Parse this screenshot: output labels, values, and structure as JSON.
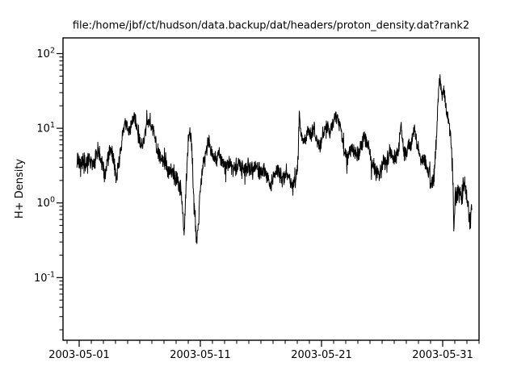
{
  "window": {
    "background_color": "#ffffff",
    "foreground_color": "#000000"
  },
  "chart_data": {
    "type": "line",
    "title": "file:/home/jbf/ct/hudson/data.backup/dat/headers/proton_density.dat?rank2",
    "ylabel": "H+ Density",
    "xlabel": "",
    "grid": false,
    "legend": "none",
    "background": "#ffffff",
    "line_color": "#000000",
    "frame_color": "#000000",
    "x_axis": {
      "type": "time",
      "tick_labels": [
        "2003-05-01",
        "2003-05-11",
        "2003-05-21",
        "2003-05-31"
      ],
      "tick_days_since_2003_05_01": [
        0,
        10,
        20,
        30
      ],
      "minor_tick_interval_days": 1,
      "range_days_since_2003_05_01": [
        -1.33,
        33.0
      ]
    },
    "y_axis": {
      "scale": "log",
      "tick_labels_plain": [
        "10^2",
        "10^1",
        "10^0",
        "10^-1"
      ],
      "tick_exponents": [
        2,
        1,
        0,
        -1
      ],
      "tick_values": [
        100,
        10,
        1,
        0.1
      ],
      "minor_ticks": "log decades 2-9",
      "range": [
        0.015,
        160
      ]
    },
    "series": [
      {
        "name": "proton_density",
        "color": "#000000",
        "note": "dense noisy solar-wind proton density trace; keypoints are [days since 2003-05-01, density, noise half-width in log10 decades] estimated from pixels",
        "render": {
          "step_days": 0.02,
          "seed": 42
        },
        "keypoints": [
          [
            -0.2,
            4.0,
            0.16
          ],
          [
            0.0,
            3.2,
            0.14
          ],
          [
            0.3,
            3.8,
            0.13
          ],
          [
            0.6,
            2.9,
            0.13
          ],
          [
            0.9,
            4.1,
            0.13
          ],
          [
            1.2,
            3.1,
            0.12
          ],
          [
            1.55,
            5.2,
            0.11
          ],
          [
            1.85,
            3.6,
            0.12
          ],
          [
            2.15,
            2.4,
            0.12
          ],
          [
            2.5,
            5.0,
            0.11
          ],
          [
            2.75,
            4.6,
            0.11
          ],
          [
            3.05,
            2.1,
            0.12
          ],
          [
            3.35,
            4.0,
            0.12
          ],
          [
            3.6,
            8.0,
            0.11
          ],
          [
            3.8,
            13.0,
            0.09
          ],
          [
            3.95,
            10.0,
            0.1
          ],
          [
            4.15,
            8.5,
            0.1
          ],
          [
            4.35,
            12.5,
            0.09
          ],
          [
            4.55,
            14.0,
            0.09
          ],
          [
            4.75,
            10.0,
            0.1
          ],
          [
            4.95,
            7.5,
            0.1
          ],
          [
            5.15,
            5.5,
            0.1
          ],
          [
            5.35,
            7.0,
            0.1
          ],
          [
            5.55,
            11.0,
            0.09
          ],
          [
            5.75,
            13.5,
            0.09
          ],
          [
            5.95,
            11.0,
            0.09
          ],
          [
            6.2,
            8.0,
            0.1
          ],
          [
            6.45,
            5.0,
            0.11
          ],
          [
            6.7,
            4.0,
            0.11
          ],
          [
            7.0,
            3.5,
            0.12
          ],
          [
            7.3,
            3.0,
            0.12
          ],
          [
            7.6,
            2.8,
            0.12
          ],
          [
            7.9,
            2.3,
            0.12
          ],
          [
            8.2,
            1.8,
            0.13
          ],
          [
            8.45,
            1.2,
            0.14
          ],
          [
            8.65,
            0.36,
            0.1
          ],
          [
            8.8,
            1.5,
            0.16
          ],
          [
            9.0,
            6.5,
            0.12
          ],
          [
            9.15,
            9.0,
            0.1
          ],
          [
            9.3,
            5.0,
            0.13
          ],
          [
            9.45,
            1.2,
            0.15
          ],
          [
            9.6,
            0.45,
            0.12
          ],
          [
            9.72,
            0.32,
            0.1
          ],
          [
            9.85,
            0.6,
            0.15
          ],
          [
            10.0,
            1.6,
            0.14
          ],
          [
            10.3,
            3.5,
            0.12
          ],
          [
            10.7,
            6.8,
            0.1
          ],
          [
            10.95,
            4.8,
            0.11
          ],
          [
            11.2,
            3.6,
            0.11
          ],
          [
            11.5,
            4.4,
            0.11
          ],
          [
            11.8,
            3.4,
            0.11
          ],
          [
            12.1,
            3.0,
            0.11
          ],
          [
            12.45,
            3.4,
            0.11
          ],
          [
            12.8,
            2.7,
            0.11
          ],
          [
            13.15,
            3.3,
            0.11
          ],
          [
            13.5,
            2.8,
            0.11
          ],
          [
            13.85,
            3.1,
            0.11
          ],
          [
            14.2,
            2.6,
            0.11
          ],
          [
            14.55,
            3.0,
            0.11
          ],
          [
            14.9,
            2.6,
            0.11
          ],
          [
            15.25,
            2.9,
            0.1
          ],
          [
            15.55,
            2.1,
            0.1
          ],
          [
            15.8,
            1.6,
            0.1
          ],
          [
            16.05,
            2.4,
            0.1
          ],
          [
            16.4,
            2.7,
            0.1
          ],
          [
            16.75,
            2.1,
            0.1
          ],
          [
            17.1,
            2.5,
            0.1
          ],
          [
            17.45,
            2.0,
            0.1
          ],
          [
            17.65,
            1.6,
            0.1
          ],
          [
            17.9,
            2.2,
            0.1
          ],
          [
            18.05,
            3.5,
            0.1
          ],
          [
            18.17,
            16.0,
            0.1
          ],
          [
            18.3,
            8.5,
            0.09
          ],
          [
            18.6,
            7.0,
            0.09
          ],
          [
            18.9,
            9.5,
            0.09
          ],
          [
            19.15,
            7.5,
            0.09
          ],
          [
            19.35,
            10.5,
            0.09
          ],
          [
            19.6,
            7.0,
            0.09
          ],
          [
            19.9,
            6.0,
            0.1
          ],
          [
            20.15,
            8.0,
            0.09
          ],
          [
            20.45,
            10.5,
            0.09
          ],
          [
            20.7,
            8.5,
            0.09
          ],
          [
            20.95,
            12.0,
            0.09
          ],
          [
            21.3,
            14.5,
            0.09
          ],
          [
            21.55,
            10.0,
            0.09
          ],
          [
            21.8,
            5.5,
            0.1
          ],
          [
            22.1,
            4.0,
            0.11
          ],
          [
            22.5,
            5.0,
            0.11
          ],
          [
            22.9,
            4.2,
            0.11
          ],
          [
            23.2,
            5.2,
            0.11
          ],
          [
            23.5,
            8.0,
            0.1
          ],
          [
            23.75,
            6.5,
            0.1
          ],
          [
            24.1,
            4.0,
            0.11
          ],
          [
            24.45,
            2.8,
            0.11
          ],
          [
            24.7,
            2.2,
            0.11
          ],
          [
            25.0,
            3.0,
            0.11
          ],
          [
            25.35,
            3.8,
            0.11
          ],
          [
            25.7,
            4.8,
            0.11
          ],
          [
            26.0,
            3.8,
            0.11
          ],
          [
            26.3,
            4.4,
            0.11
          ],
          [
            26.55,
            11.0,
            0.09
          ],
          [
            26.8,
            4.5,
            0.11
          ],
          [
            27.1,
            5.5,
            0.11
          ],
          [
            27.4,
            6.5,
            0.1
          ],
          [
            27.65,
            9.5,
            0.09
          ],
          [
            27.9,
            6.0,
            0.1
          ],
          [
            28.2,
            4.0,
            0.11
          ],
          [
            28.55,
            3.2,
            0.11
          ],
          [
            28.85,
            2.6,
            0.12
          ],
          [
            29.1,
            1.7,
            0.12
          ],
          [
            29.3,
            2.2,
            0.13
          ],
          [
            29.45,
            6.0,
            0.12
          ],
          [
            29.6,
            20.0,
            0.1
          ],
          [
            29.77,
            48.0,
            0.08
          ],
          [
            29.95,
            26.0,
            0.1
          ],
          [
            30.1,
            34.0,
            0.09
          ],
          [
            30.3,
            17.0,
            0.1
          ],
          [
            30.5,
            11.0,
            0.1
          ],
          [
            30.68,
            8.0,
            0.1
          ],
          [
            30.82,
            2.5,
            0.14
          ],
          [
            30.93,
            0.45,
            0.1
          ],
          [
            31.05,
            1.3,
            0.15
          ],
          [
            31.3,
            1.5,
            0.13
          ],
          [
            31.55,
            1.1,
            0.13
          ],
          [
            31.75,
            2.0,
            0.12
          ],
          [
            31.95,
            1.4,
            0.13
          ],
          [
            32.1,
            0.9,
            0.12
          ],
          [
            32.22,
            0.55,
            0.11
          ],
          [
            32.32,
            0.75,
            0.12
          ],
          [
            32.42,
            1.0,
            0.12
          ]
        ]
      }
    ]
  }
}
